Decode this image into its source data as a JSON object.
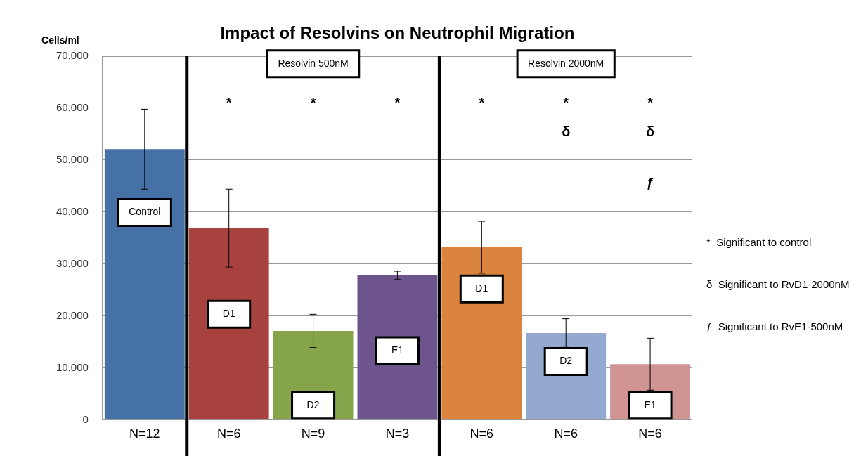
{
  "chart_data": {
    "type": "bar",
    "title": "Impact of Resolvins on Neutrophil Migration",
    "ylabel": "Cells/ml",
    "categories": [
      "N=12",
      "N=6",
      "N=9",
      "N=3",
      "N=6",
      "N=6",
      "N=6"
    ],
    "values": [
      52100,
      36900,
      17100,
      27800,
      33200,
      16700,
      10700
    ],
    "colors": [
      "#4571a7",
      "#a8423f",
      "#86a44a",
      "#6e548d",
      "#db843d",
      "#93a9cf",
      "#d09493"
    ],
    "errors": [
      7700,
      7500,
      3200,
      800,
      5000,
      2750,
      5000
    ],
    "ylim": [
      0,
      70000
    ],
    "yticks": [
      {
        "value": 0,
        "label": "0"
      },
      {
        "value": 10000,
        "label": "10,000"
      },
      {
        "value": 20000,
        "label": "20,000"
      },
      {
        "value": 30000,
        "label": "30,000"
      },
      {
        "value": 40000,
        "label": "40,000"
      },
      {
        "value": 50000,
        "label": "50,000"
      },
      {
        "value": 60000,
        "label": "60,000"
      },
      {
        "value": 70000,
        "label": "70,000"
      }
    ],
    "grid": "y",
    "annotations": [
      "Resolvin 500nM",
      "Resolvin 2000nM",
      "Control",
      "*",
      "D1",
      "*",
      "D2",
      "*",
      "E1",
      "*",
      "D1",
      "*",
      "δ",
      "D2",
      "*",
      "δ",
      "ƒ",
      "E1",
      "*  Significant to control",
      "δ  Significant to RvD1-2000nM",
      "ƒ  Significant to RvE1-500nM"
    ]
  }
}
